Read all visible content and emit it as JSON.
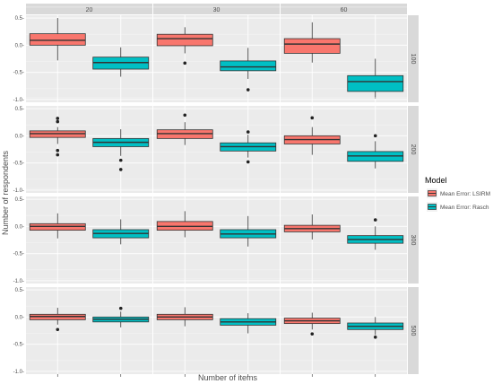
{
  "chart_data": {
    "type": "boxplot",
    "xlabel": "Number of items",
    "ylabel": "Number of respondents",
    "col_facets": [
      "20",
      "30",
      "60"
    ],
    "row_facets": [
      "100",
      "200",
      "300",
      "500"
    ],
    "ylim": [
      -1.05,
      0.55
    ],
    "yticks": [
      0.5,
      0.0,
      -0.5,
      -1.0
    ],
    "ytick_labels": [
      "0.5-",
      "0.0-",
      "-0.5-",
      "-1.0-"
    ],
    "legend": {
      "title": "Model",
      "position": "right"
    },
    "series": [
      {
        "name": "Mean Error: LSIRM",
        "color": "#F8766D"
      },
      {
        "name": "Mean Error: Rasch",
        "color": "#00BFC4"
      }
    ],
    "panels": [
      {
        "row": "100",
        "col": "20",
        "boxes": [
          {
            "series": 0,
            "min": -0.28,
            "q1": 0.0,
            "median": 0.09,
            "q3": 0.21,
            "max": 0.5,
            "outliers": []
          },
          {
            "series": 1,
            "min": -0.58,
            "q1": -0.44,
            "median": -0.32,
            "q3": -0.22,
            "max": -0.04,
            "outliers": []
          }
        ]
      },
      {
        "row": "100",
        "col": "30",
        "boxes": [
          {
            "series": 0,
            "min": -0.15,
            "q1": -0.01,
            "median": 0.12,
            "q3": 0.2,
            "max": 0.33,
            "outliers": [
              -0.33
            ]
          },
          {
            "series": 1,
            "min": -0.62,
            "q1": -0.47,
            "median": -0.4,
            "q3": -0.29,
            "max": -0.05,
            "outliers": [
              -0.82
            ]
          }
        ]
      },
      {
        "row": "100",
        "col": "60",
        "boxes": [
          {
            "series": 0,
            "min": -0.32,
            "q1": -0.15,
            "median": 0.02,
            "q3": 0.12,
            "max": 0.42,
            "outliers": []
          },
          {
            "series": 1,
            "min": -0.98,
            "q1": -0.85,
            "median": -0.67,
            "q3": -0.56,
            "max": -0.25,
            "outliers": []
          }
        ]
      },
      {
        "row": "200",
        "col": "20",
        "boxes": [
          {
            "series": 0,
            "min": -0.15,
            "q1": -0.03,
            "median": 0.04,
            "q3": 0.09,
            "max": 0.16,
            "outliers": [
              0.32,
              0.26,
              -0.27,
              -0.35
            ]
          },
          {
            "series": 1,
            "min": -0.37,
            "q1": -0.2,
            "median": -0.12,
            "q3": -0.05,
            "max": 0.12,
            "outliers": [
              -0.45,
              -0.62
            ]
          }
        ]
      },
      {
        "row": "200",
        "col": "30",
        "boxes": [
          {
            "series": 0,
            "min": -0.17,
            "q1": -0.05,
            "median": 0.04,
            "q3": 0.11,
            "max": 0.25,
            "outliers": [
              0.38
            ]
          },
          {
            "series": 1,
            "min": -0.4,
            "q1": -0.28,
            "median": -0.2,
            "q3": -0.13,
            "max": 0.02,
            "outliers": [
              0.07,
              -0.48
            ]
          }
        ]
      },
      {
        "row": "200",
        "col": "60",
        "boxes": [
          {
            "series": 0,
            "min": -0.35,
            "q1": -0.15,
            "median": -0.07,
            "q3": 0.0,
            "max": 0.16,
            "outliers": [
              0.33
            ]
          },
          {
            "series": 1,
            "min": -0.6,
            "q1": -0.47,
            "median": -0.37,
            "q3": -0.29,
            "max": -0.1,
            "outliers": [
              0.0
            ]
          }
        ]
      },
      {
        "row": "300",
        "col": "20",
        "boxes": [
          {
            "series": 0,
            "min": -0.22,
            "q1": -0.07,
            "median": 0.0,
            "q3": 0.05,
            "max": 0.24,
            "outliers": []
          },
          {
            "series": 1,
            "min": -0.33,
            "q1": -0.21,
            "median": -0.13,
            "q3": -0.06,
            "max": 0.13,
            "outliers": []
          }
        ]
      },
      {
        "row": "300",
        "col": "30",
        "boxes": [
          {
            "series": 0,
            "min": -0.2,
            "q1": -0.07,
            "median": 0.0,
            "q3": 0.09,
            "max": 0.28,
            "outliers": []
          },
          {
            "series": 1,
            "min": -0.37,
            "q1": -0.21,
            "median": -0.14,
            "q3": -0.06,
            "max": 0.19,
            "outliers": []
          }
        ]
      },
      {
        "row": "300",
        "col": "60",
        "boxes": [
          {
            "series": 0,
            "min": -0.24,
            "q1": -0.1,
            "median": -0.04,
            "q3": 0.02,
            "max": 0.22,
            "outliers": []
          },
          {
            "series": 1,
            "min": -0.43,
            "q1": -0.31,
            "median": -0.24,
            "q3": -0.17,
            "max": 0.0,
            "outliers": [
              0.12
            ]
          }
        ]
      },
      {
        "row": "500",
        "col": "20",
        "boxes": [
          {
            "series": 0,
            "min": -0.14,
            "q1": -0.05,
            "median": 0.01,
            "q3": 0.05,
            "max": 0.17,
            "outliers": [
              -0.23
            ]
          },
          {
            "series": 1,
            "min": -0.19,
            "q1": -0.09,
            "median": -0.04,
            "q3": 0.0,
            "max": 0.1,
            "outliers": [
              0.16
            ]
          }
        ]
      },
      {
        "row": "500",
        "col": "30",
        "boxes": [
          {
            "series": 0,
            "min": -0.17,
            "q1": -0.05,
            "median": 0.0,
            "q3": 0.05,
            "max": 0.18,
            "outliers": []
          },
          {
            "series": 1,
            "min": -0.3,
            "q1": -0.15,
            "median": -0.09,
            "q3": -0.03,
            "max": 0.07,
            "outliers": []
          }
        ]
      },
      {
        "row": "500",
        "col": "60",
        "boxes": [
          {
            "series": 0,
            "min": -0.23,
            "q1": -0.12,
            "median": -0.07,
            "q3": -0.02,
            "max": 0.08,
            "outliers": [
              -0.31
            ]
          },
          {
            "series": 1,
            "min": -0.33,
            "q1": -0.23,
            "median": -0.17,
            "q3": -0.11,
            "max": 0.0,
            "outliers": [
              -0.37
            ]
          }
        ]
      }
    ]
  }
}
